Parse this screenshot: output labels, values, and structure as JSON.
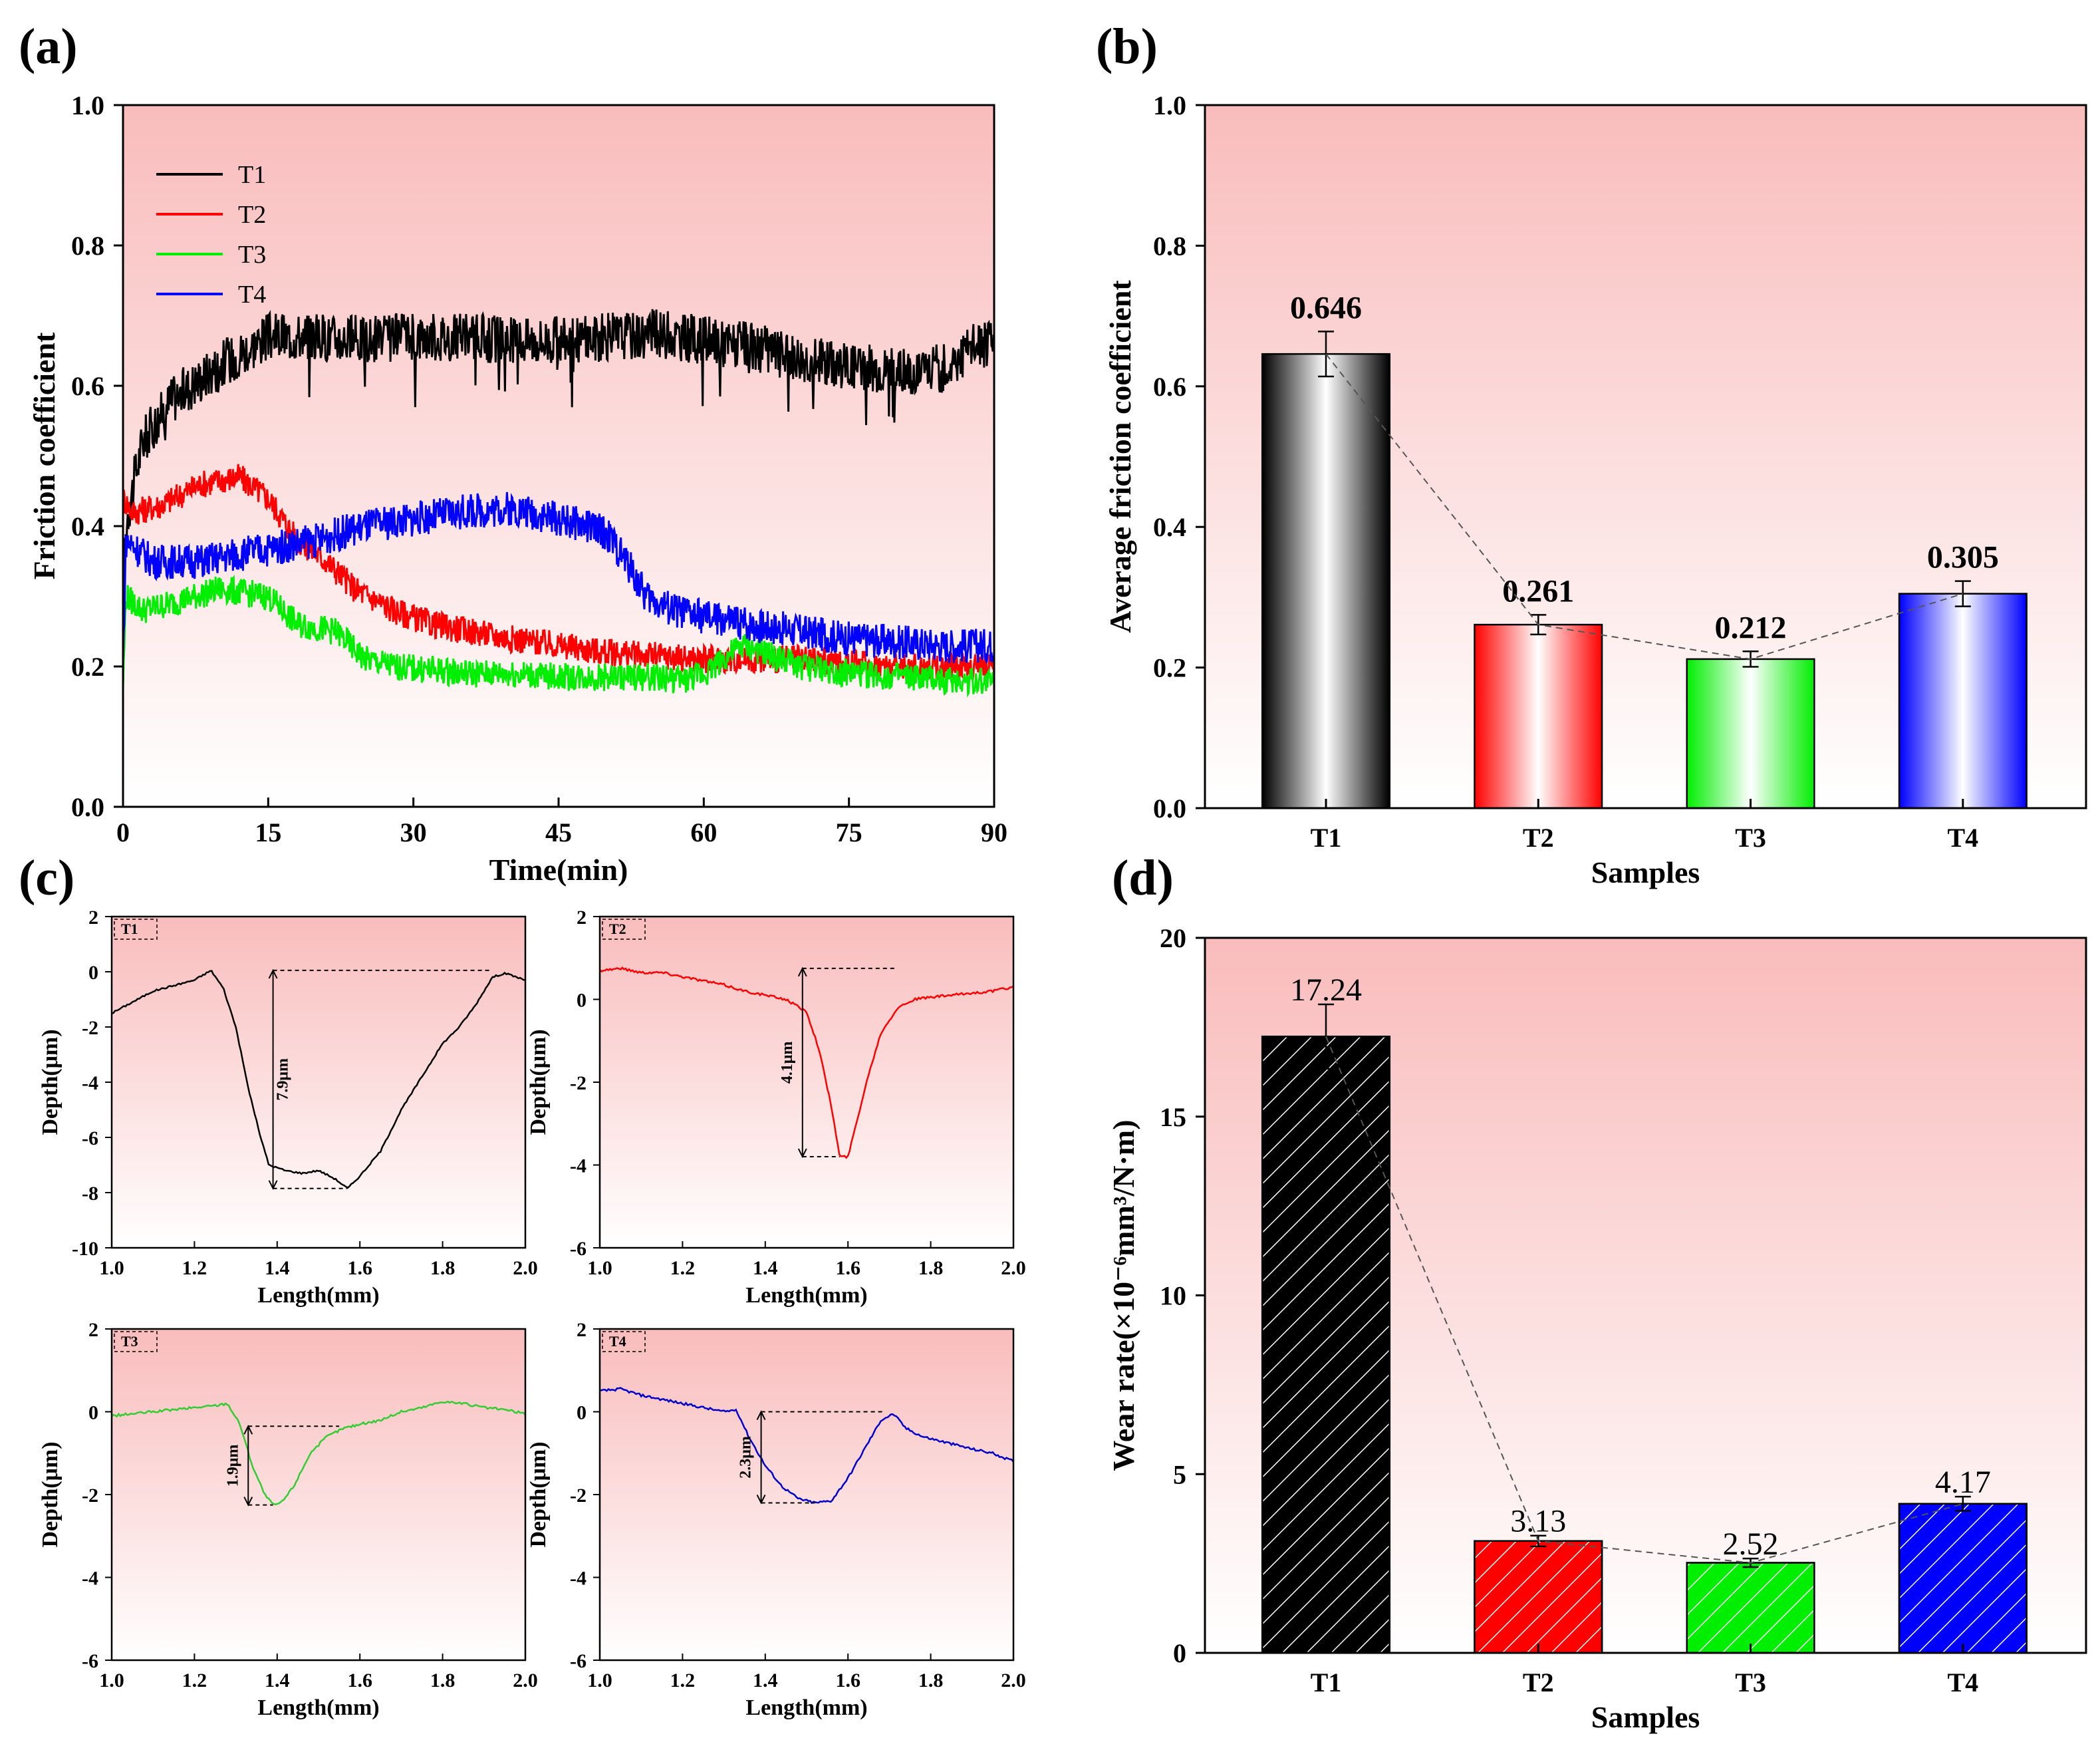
{
  "chart_data": [
    {
      "panel": "(a)",
      "type": "line",
      "xlabel": "Time(min)",
      "ylabel": "Friction coefficient",
      "xlim": [
        0,
        90
      ],
      "ylim": [
        0,
        1.0
      ],
      "xticks": [
        "0",
        "15",
        "30",
        "45",
        "60",
        "75",
        "90"
      ],
      "yticks": [
        "0.0",
        "0.2",
        "0.4",
        "0.6",
        "0.8",
        "1.0"
      ],
      "legend_position": "top-left",
      "series": [
        {
          "name": "T1",
          "color": "#000000",
          "noise": 0.035,
          "x": [
            0,
            0.5,
            2,
            5,
            10,
            15,
            20,
            25,
            30,
            35,
            40,
            45,
            50,
            55,
            60,
            65,
            70,
            75,
            80,
            85,
            88,
            90
          ],
          "y": [
            0.33,
            0.42,
            0.52,
            0.58,
            0.63,
            0.67,
            0.67,
            0.665,
            0.67,
            0.67,
            0.665,
            0.665,
            0.67,
            0.675,
            0.665,
            0.655,
            0.64,
            0.63,
            0.62,
            0.625,
            0.66,
            0.66
          ]
        },
        {
          "name": "T2",
          "color": "#ff0000",
          "noise": 0.02,
          "x": [
            0,
            1,
            4,
            8,
            12,
            15,
            18,
            21,
            24,
            28,
            32,
            36,
            40,
            45,
            50,
            55,
            60,
            65,
            70,
            75,
            80,
            85,
            90
          ],
          "y": [
            0.44,
            0.42,
            0.43,
            0.46,
            0.47,
            0.44,
            0.38,
            0.35,
            0.31,
            0.28,
            0.26,
            0.25,
            0.24,
            0.23,
            0.22,
            0.215,
            0.21,
            0.21,
            0.21,
            0.205,
            0.2,
            0.2,
            0.2
          ]
        },
        {
          "name": "T3",
          "color": "#00ee00",
          "noise": 0.02,
          "x": [
            0,
            0.3,
            2,
            5,
            10,
            15,
            18,
            22,
            25,
            28,
            32,
            36,
            40,
            45,
            50,
            55,
            58,
            60,
            62,
            64,
            66,
            70,
            75,
            80,
            85,
            90
          ],
          "y": [
            0.17,
            0.3,
            0.28,
            0.29,
            0.31,
            0.3,
            0.26,
            0.25,
            0.21,
            0.2,
            0.195,
            0.19,
            0.19,
            0.185,
            0.185,
            0.185,
            0.18,
            0.19,
            0.21,
            0.23,
            0.22,
            0.2,
            0.19,
            0.185,
            0.18,
            0.18
          ]
        },
        {
          "name": "T4",
          "color": "#0000ff",
          "noise": 0.025,
          "x": [
            0,
            0.3,
            3,
            8,
            12,
            16,
            20,
            25,
            30,
            35,
            40,
            42,
            45,
            48,
            50,
            52,
            54,
            57,
            60,
            65,
            70,
            75,
            80,
            85,
            90
          ],
          "y": [
            0.2,
            0.38,
            0.35,
            0.35,
            0.36,
            0.37,
            0.38,
            0.4,
            0.41,
            0.42,
            0.425,
            0.42,
            0.41,
            0.4,
            0.39,
            0.35,
            0.3,
            0.28,
            0.27,
            0.26,
            0.25,
            0.24,
            0.235,
            0.23,
            0.23
          ]
        }
      ]
    },
    {
      "panel": "(b)",
      "type": "bar",
      "xlabel": "Samples",
      "ylabel": "Average friction coefficient",
      "categories": [
        "T1",
        "T2",
        "T3",
        "T4"
      ],
      "values": [
        0.646,
        0.261,
        0.212,
        0.305
      ],
      "value_labels": [
        "0.646",
        "0.261",
        "0.212",
        "0.305"
      ],
      "errors": [
        0.032,
        0.014,
        0.011,
        0.018
      ],
      "colors": [
        "#000000",
        "#ff0000",
        "#00ee00",
        "#0000ff"
      ],
      "ylim": [
        0,
        1.0
      ],
      "yticks": [
        "0.0",
        "0.2",
        "0.4",
        "0.6",
        "0.8",
        "1.0"
      ]
    },
    {
      "panel": "(c)",
      "type": "line",
      "xlabel": "Length(mm)",
      "ylabel": "Depth(μm)",
      "subplots": [
        {
          "label": "T1",
          "color": "#000000",
          "xlim": [
            1.0,
            2.0
          ],
          "ylim": [
            -10,
            2
          ],
          "yticks": [
            "2",
            "0",
            "-2",
            "-4",
            "-6",
            "-8",
            "-10"
          ],
          "xticks": [
            "1.0",
            "1.2",
            "1.4",
            "1.6",
            "1.8",
            "2.0"
          ],
          "annotation": "7.9μm",
          "x": [
            1.0,
            1.05,
            1.1,
            1.15,
            1.2,
            1.24,
            1.27,
            1.3,
            1.33,
            1.36,
            1.38,
            1.42,
            1.46,
            1.5,
            1.54,
            1.57,
            1.6,
            1.65,
            1.7,
            1.75,
            1.8,
            1.84,
            1.88,
            1.92,
            1.95,
            2.0
          ],
          "y": [
            -1.5,
            -1.1,
            -0.7,
            -0.5,
            -0.3,
            0.05,
            -0.6,
            -2.0,
            -4.2,
            -6.0,
            -7.0,
            -7.2,
            -7.3,
            -7.2,
            -7.5,
            -7.85,
            -7.4,
            -6.5,
            -5.0,
            -3.8,
            -2.6,
            -2.0,
            -1.2,
            -0.2,
            -0.05,
            -0.3
          ]
        },
        {
          "label": "T2",
          "color": "#ff0000",
          "xlim": [
            1.0,
            2.0
          ],
          "ylim": [
            -6,
            2
          ],
          "yticks": [
            "2",
            "0",
            "-2",
            "-4",
            "-6"
          ],
          "xticks": [
            "1.0",
            "1.2",
            "1.4",
            "1.6",
            "1.8",
            "2.0"
          ],
          "annotation": "4.1μm",
          "x": [
            1.0,
            1.05,
            1.1,
            1.15,
            1.2,
            1.25,
            1.3,
            1.35,
            1.4,
            1.45,
            1.5,
            1.53,
            1.56,
            1.58,
            1.6,
            1.62,
            1.65,
            1.68,
            1.72,
            1.76,
            1.8,
            1.85,
            1.9,
            1.95,
            2.0
          ],
          "y": [
            0.7,
            0.75,
            0.65,
            0.65,
            0.55,
            0.45,
            0.35,
            0.2,
            0.1,
            0.0,
            -0.3,
            -1.2,
            -2.6,
            -3.8,
            -3.8,
            -3.0,
            -1.8,
            -0.8,
            -0.2,
            0.0,
            0.05,
            0.1,
            0.15,
            0.2,
            0.3
          ]
        },
        {
          "label": "T3",
          "color": "#33cc33",
          "xlim": [
            1.0,
            2.0
          ],
          "ylim": [
            -6,
            2
          ],
          "yticks": [
            "2",
            "0",
            "-2",
            "-4",
            "-6"
          ],
          "xticks": [
            "1.0",
            "1.2",
            "1.4",
            "1.6",
            "1.8",
            "2.0"
          ],
          "annotation": "1.9μm",
          "x": [
            1.0,
            1.05,
            1.1,
            1.15,
            1.2,
            1.25,
            1.28,
            1.31,
            1.34,
            1.37,
            1.39,
            1.41,
            1.44,
            1.48,
            1.52,
            1.56,
            1.6,
            1.65,
            1.7,
            1.75,
            1.8,
            1.85,
            1.9,
            1.95,
            2.0
          ],
          "y": [
            -0.1,
            -0.05,
            0.0,
            0.05,
            0.1,
            0.15,
            0.2,
            -0.3,
            -1.3,
            -2.0,
            -2.25,
            -2.2,
            -1.8,
            -1.0,
            -0.6,
            -0.4,
            -0.3,
            -0.2,
            0.0,
            0.1,
            0.25,
            0.2,
            0.1,
            0.05,
            -0.05
          ]
        },
        {
          "label": "T4",
          "color": "#0000cc",
          "xlim": [
            1.0,
            2.0
          ],
          "ylim": [
            -6,
            2
          ],
          "yticks": [
            "2",
            "0",
            "-2",
            "-4",
            "-6"
          ],
          "xticks": [
            "1.0",
            "1.2",
            "1.4",
            "1.6",
            "1.8",
            "2.0"
          ],
          "annotation": "2.3μm",
          "x": [
            1.0,
            1.05,
            1.1,
            1.15,
            1.2,
            1.25,
            1.3,
            1.33,
            1.36,
            1.4,
            1.44,
            1.48,
            1.52,
            1.56,
            1.6,
            1.64,
            1.68,
            1.71,
            1.74,
            1.78,
            1.82,
            1.86,
            1.9,
            1.95,
            2.0
          ],
          "y": [
            0.5,
            0.55,
            0.4,
            0.3,
            0.2,
            0.1,
            0.0,
            0.05,
            -0.6,
            -1.3,
            -1.8,
            -2.1,
            -2.2,
            -2.15,
            -1.6,
            -0.9,
            -0.2,
            -0.05,
            -0.4,
            -0.6,
            -0.7,
            -0.8,
            -0.9,
            -1.0,
            -1.2
          ]
        }
      ]
    },
    {
      "panel": "(d)",
      "type": "bar",
      "xlabel": "Samples",
      "ylabel": "Wear rate(×10⁻⁶mm³/N·m)",
      "categories": [
        "T1",
        "T2",
        "T3",
        "T4"
      ],
      "values": [
        17.24,
        3.13,
        2.52,
        4.17
      ],
      "value_labels": [
        "17.24",
        "3.13",
        "2.52",
        "4.17"
      ],
      "errors": [
        0.9,
        0.15,
        0.12,
        0.2
      ],
      "colors": [
        "#000000",
        "#ff0000",
        "#00ee00",
        "#0000ff"
      ],
      "ylim": [
        0,
        20
      ],
      "yticks": [
        "0",
        "5",
        "10",
        "15",
        "20"
      ]
    }
  ]
}
